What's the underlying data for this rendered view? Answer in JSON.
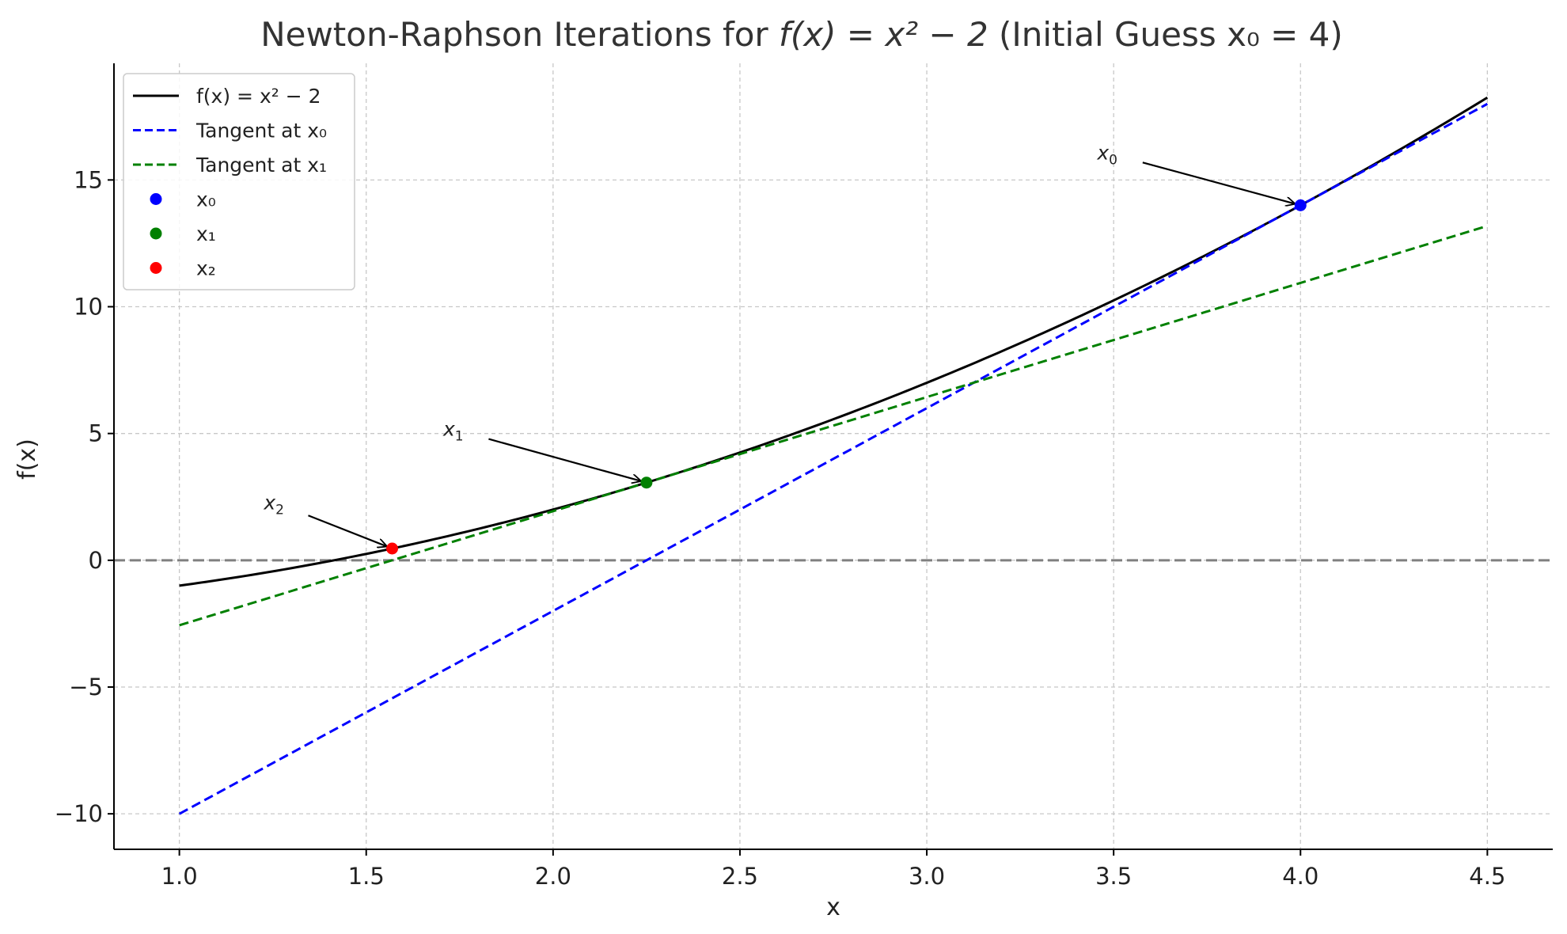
{
  "chart_data": {
    "type": "line",
    "title_prefix": "Newton-Raphson Iterations for ",
    "title_math": "f(x) = x² − 2",
    "title_suffix": " (Initial Guess x₀ = 4)",
    "xlabel": "x",
    "ylabel": "f(x)",
    "xlim": [
      0.825,
      4.675
    ],
    "ylim": [
      -11.4,
      19.6
    ],
    "xticks": [
      1.0,
      1.5,
      2.0,
      2.5,
      3.0,
      3.5,
      4.0,
      4.5
    ],
    "xtick_labels": [
      "1.0",
      "1.5",
      "2.0",
      "2.5",
      "3.0",
      "3.5",
      "4.0",
      "4.5"
    ],
    "yticks": [
      -10,
      -5,
      0,
      5,
      10,
      15
    ],
    "ytick_labels": [
      "−10",
      "−5",
      "0",
      "5",
      "10",
      "15"
    ],
    "grid": true,
    "legend_position": "top-left",
    "series": [
      {
        "name": "f(x) = x² − 2",
        "kind": "curve",
        "x_range": [
          1.0,
          4.5
        ],
        "color": "#000000",
        "style": "solid"
      },
      {
        "name": "Tangent at x₀",
        "kind": "line",
        "x": [
          1.0,
          4.5
        ],
        "y": [
          -10,
          18
        ],
        "color": "#0000ff",
        "style": "dashed"
      },
      {
        "name": "Tangent at x₁",
        "kind": "line",
        "x": [
          1.0,
          4.5
        ],
        "y": [
          -2.5625,
          13.1875
        ],
        "color": "#008000",
        "style": "dashed"
      }
    ],
    "points": [
      {
        "name": "x₀",
        "x": 4.0,
        "y": 14.0,
        "color": "#0000ff"
      },
      {
        "name": "x₁",
        "x": 2.25,
        "y": 3.0625,
        "color": "#008000"
      },
      {
        "name": "x₂",
        "x": 1.5694,
        "y": 0.4631,
        "color": "#ff0000"
      }
    ],
    "zero_line": {
      "y": 0,
      "color": "#808080"
    },
    "annotations": [
      {
        "text": "x₀",
        "label": "x",
        "sub": "0",
        "text_x": 3.5,
        "text_y": 16,
        "target_x": 4.0,
        "target_y": 14.0
      },
      {
        "text": "x₁",
        "label": "x",
        "sub": "1",
        "text_x": 1.75,
        "text_y": 5.1,
        "target_x": 2.25,
        "target_y": 3.0625
      },
      {
        "text": "x₂",
        "label": "x",
        "sub": "2",
        "text_x": 1.27,
        "text_y": 2.2,
        "target_x": 1.5694,
        "target_y": 0.4631
      }
    ]
  },
  "legend": {
    "items": [
      {
        "kind": "line",
        "color": "#000000",
        "style": "solid",
        "text": "f(x) = x² − 2"
      },
      {
        "kind": "line",
        "color": "#0000ff",
        "style": "dashed",
        "text": "Tangent at x₀"
      },
      {
        "kind": "line",
        "color": "#008000",
        "style": "dashed",
        "text": "Tangent at x₁"
      },
      {
        "kind": "marker",
        "color": "#0000ff",
        "text": "x₀"
      },
      {
        "kind": "marker",
        "color": "#008000",
        "text": "x₁"
      },
      {
        "kind": "marker",
        "color": "#ff0000",
        "text": "x₂"
      }
    ]
  }
}
